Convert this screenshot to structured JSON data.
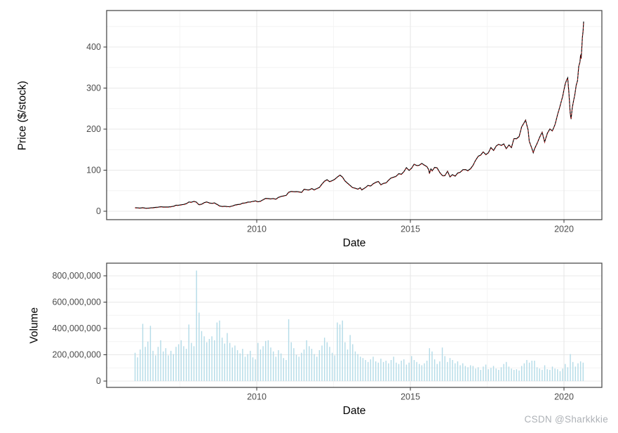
{
  "page": {
    "watermark": "CSDN @Sharkkkie",
    "background": "#ffffff"
  },
  "style": {
    "panel_border": "#4d4d4d",
    "grid_major": "#e8e8e8",
    "grid_minor": "#f4f4f4",
    "tick_mark": "#333333",
    "tick_text": "#4d4d4d",
    "price_line": "#000000",
    "fitted_line": "#cc2222",
    "volume_bar": "#add8e6"
  },
  "chart_data": [
    {
      "type": "line",
      "title": "",
      "xlabel": "Date",
      "ylabel": "Price ($/stock)",
      "legend": "none",
      "grid": "on",
      "xlim": [
        2005.2,
        2021.3
      ],
      "ylim": [
        -20,
        489
      ],
      "x_ticks": [
        {
          "value": 2010,
          "label": "2010"
        },
        {
          "value": 2015,
          "label": "2015"
        },
        {
          "value": 2020,
          "label": "2020"
        }
      ],
      "x_minor": [
        2007.5,
        2012.5,
        2017.5
      ],
      "y_ticks": [
        {
          "value": 0,
          "label": "0"
        },
        {
          "value": 100,
          "label": "100"
        },
        {
          "value": 200,
          "label": "200"
        },
        {
          "value": 300,
          "label": "300"
        },
        {
          "value": 400,
          "label": "400"
        }
      ],
      "y_minor": [
        50,
        150,
        250,
        350,
        450
      ],
      "series": [
        {
          "name": "observed price",
          "color": "#000000",
          "style": "solid",
          "points": [
            [
              2006.04,
              8.6
            ],
            [
              2006.12,
              8.2
            ],
            [
              2006.21,
              7.9
            ],
            [
              2006.29,
              8.6
            ],
            [
              2006.37,
              7.6
            ],
            [
              2006.46,
              7.4
            ],
            [
              2006.54,
              8.2
            ],
            [
              2006.62,
              8.5
            ],
            [
              2006.71,
              9.4
            ],
            [
              2006.79,
              9.9
            ],
            [
              2006.87,
              11.0
            ],
            [
              2006.96,
              10.3
            ],
            [
              2007.04,
              10.5
            ],
            [
              2007.12,
              10.2
            ],
            [
              2007.21,
              11.2
            ],
            [
              2007.29,
              12.2
            ],
            [
              2007.37,
              14.5
            ],
            [
              2007.46,
              14.7
            ],
            [
              2007.54,
              15.8
            ],
            [
              2007.62,
              16.6
            ],
            [
              2007.71,
              18.4
            ],
            [
              2007.79,
              22.6
            ],
            [
              2007.87,
              21.8
            ],
            [
              2007.96,
              24.0
            ],
            [
              2008.04,
              22.0
            ],
            [
              2008.08,
              18.5
            ],
            [
              2008.12,
              16.0
            ],
            [
              2008.21,
              17.2
            ],
            [
              2008.29,
              20.9
            ],
            [
              2008.37,
              22.7
            ],
            [
              2008.46,
              20.1
            ],
            [
              2008.54,
              19.1
            ],
            [
              2008.62,
              20.3
            ],
            [
              2008.71,
              16.5
            ],
            [
              2008.79,
              13.0
            ],
            [
              2008.87,
              11.6
            ],
            [
              2008.96,
              12.2
            ],
            [
              2009.04,
              11.5
            ],
            [
              2009.12,
              11.2
            ],
            [
              2009.21,
              12.8
            ],
            [
              2009.29,
              15.1
            ],
            [
              2009.37,
              16.3
            ],
            [
              2009.46,
              17.0
            ],
            [
              2009.54,
              19.6
            ],
            [
              2009.62,
              20.2
            ],
            [
              2009.71,
              22.2
            ],
            [
              2009.79,
              22.6
            ],
            [
              2009.87,
              24.0
            ],
            [
              2009.96,
              25.3
            ],
            [
              2010.04,
              23.0
            ],
            [
              2010.12,
              24.5
            ],
            [
              2010.21,
              28.2
            ],
            [
              2010.29,
              31.3
            ],
            [
              2010.37,
              30.8
            ],
            [
              2010.46,
              30.2
            ],
            [
              2010.54,
              30.9
            ],
            [
              2010.62,
              29.2
            ],
            [
              2010.71,
              34.0
            ],
            [
              2010.79,
              36.1
            ],
            [
              2010.87,
              37.3
            ],
            [
              2010.96,
              38.7
            ],
            [
              2011.04,
              46.3
            ],
            [
              2011.12,
              48.2
            ],
            [
              2011.21,
              47.5
            ],
            [
              2011.29,
              47.7
            ],
            [
              2011.37,
              47.4
            ],
            [
              2011.46,
              45.8
            ],
            [
              2011.54,
              53.3
            ],
            [
              2011.62,
              52.5
            ],
            [
              2011.71,
              52.0
            ],
            [
              2011.79,
              55.2
            ],
            [
              2011.87,
              52.1
            ],
            [
              2011.96,
              55.3
            ],
            [
              2012.04,
              58.2
            ],
            [
              2012.12,
              66.0
            ],
            [
              2012.21,
              73.5
            ],
            [
              2012.29,
              76.7
            ],
            [
              2012.37,
              72.1
            ],
            [
              2012.46,
              74.6
            ],
            [
              2012.54,
              78.0
            ],
            [
              2012.62,
              83.3
            ],
            [
              2012.71,
              88.0
            ],
            [
              2012.79,
              83.2
            ],
            [
              2012.87,
              74.0
            ],
            [
              2012.96,
              68.0
            ],
            [
              2013.04,
              62.8
            ],
            [
              2013.12,
              57.5
            ],
            [
              2013.21,
              56.0
            ],
            [
              2013.29,
              53.9
            ],
            [
              2013.37,
              57.2
            ],
            [
              2013.42,
              51.8
            ],
            [
              2013.46,
              54.0
            ],
            [
              2013.54,
              57.8
            ],
            [
              2013.62,
              62.9
            ],
            [
              2013.71,
              61.5
            ],
            [
              2013.79,
              66.8
            ],
            [
              2013.87,
              70.2
            ],
            [
              2013.96,
              72.5
            ],
            [
              2014.04,
              64.5
            ],
            [
              2014.12,
              67.8
            ],
            [
              2014.21,
              69.0
            ],
            [
              2014.29,
              75.5
            ],
            [
              2014.37,
              81.1
            ],
            [
              2014.46,
              83.0
            ],
            [
              2014.54,
              85.5
            ],
            [
              2014.62,
              91.5
            ],
            [
              2014.71,
              90.1
            ],
            [
              2014.79,
              96.5
            ],
            [
              2014.87,
              106.2
            ],
            [
              2014.96,
              99.5
            ],
            [
              2015.04,
              105.0
            ],
            [
              2015.12,
              114.5
            ],
            [
              2015.21,
              111.2
            ],
            [
              2015.29,
              112.0
            ],
            [
              2015.37,
              116.5
            ],
            [
              2015.46,
              112.1
            ],
            [
              2015.54,
              108.5
            ],
            [
              2015.6,
              100.5
            ],
            [
              2015.62,
              92.0
            ],
            [
              2015.67,
              103.0
            ],
            [
              2015.71,
              98.5
            ],
            [
              2015.79,
              106.8
            ],
            [
              2015.87,
              105.7
            ],
            [
              2015.96,
              94.2
            ],
            [
              2016.04,
              87.0
            ],
            [
              2016.12,
              86.5
            ],
            [
              2016.21,
              97.5
            ],
            [
              2016.29,
              83.8
            ],
            [
              2016.37,
              89.3
            ],
            [
              2016.46,
              85.5
            ],
            [
              2016.54,
              93.2
            ],
            [
              2016.62,
              94.9
            ],
            [
              2016.71,
              101.2
            ],
            [
              2016.79,
              101.5
            ],
            [
              2016.87,
              98.8
            ],
            [
              2016.96,
              103.6
            ],
            [
              2017.04,
              112.0
            ],
            [
              2017.12,
              124.0
            ],
            [
              2017.21,
              134.0
            ],
            [
              2017.29,
              137.0
            ],
            [
              2017.37,
              144.5
            ],
            [
              2017.46,
              138.0
            ],
            [
              2017.54,
              142.5
            ],
            [
              2017.62,
              155.0
            ],
            [
              2017.71,
              148.0
            ],
            [
              2017.79,
              158.5
            ],
            [
              2017.87,
              163.0
            ],
            [
              2017.96,
              160.5
            ],
            [
              2018.04,
              164.0
            ],
            [
              2018.12,
              152.5
            ],
            [
              2018.21,
              161.5
            ],
            [
              2018.29,
              155.0
            ],
            [
              2018.37,
              176.5
            ],
            [
              2018.46,
              177.0
            ],
            [
              2018.54,
              182.0
            ],
            [
              2018.62,
              205.5
            ],
            [
              2018.71,
              216.5
            ],
            [
              2018.75,
              222.0
            ],
            [
              2018.79,
              210.0
            ],
            [
              2018.83,
              198.5
            ],
            [
              2018.87,
              170.5
            ],
            [
              2018.96,
              152.0
            ],
            [
              2019.0,
              142.5
            ],
            [
              2019.04,
              152.0
            ],
            [
              2019.12,
              164.5
            ],
            [
              2019.21,
              180.5
            ],
            [
              2019.29,
              192.5
            ],
            [
              2019.37,
              168.5
            ],
            [
              2019.46,
              190.0
            ],
            [
              2019.54,
              200.5
            ],
            [
              2019.62,
              195.5
            ],
            [
              2019.71,
              211.5
            ],
            [
              2019.79,
              235.0
            ],
            [
              2019.87,
              255.5
            ],
            [
              2019.96,
              280.5
            ],
            [
              2020.0,
              296.0
            ],
            [
              2020.04,
              310.0
            ],
            [
              2020.08,
              318.5
            ],
            [
              2020.12,
              325.0
            ],
            [
              2020.16,
              289.0
            ],
            [
              2020.2,
              240.5
            ],
            [
              2020.23,
              224.5
            ],
            [
              2020.27,
              252.0
            ],
            [
              2020.31,
              268.5
            ],
            [
              2020.35,
              282.5
            ],
            [
              2020.4,
              307.5
            ],
            [
              2020.44,
              318.0
            ],
            [
              2020.48,
              352.5
            ],
            [
              2020.52,
              364.0
            ],
            [
              2020.54,
              381.5
            ],
            [
              2020.56,
              372.0
            ],
            [
              2020.58,
              398.0
            ],
            [
              2020.6,
              425.0
            ],
            [
              2020.62,
              438.0
            ],
            [
              2020.64,
              462.0
            ]
          ]
        },
        {
          "name": "fitted / one-step-ahead prediction (overlaps observed)",
          "color": "#cc2222",
          "style": "dashed",
          "same_points_as": 0
        }
      ]
    },
    {
      "type": "bar",
      "title": "",
      "xlabel": "Date",
      "ylabel": "Volume",
      "legend": "none",
      "grid": "on",
      "xlim": [
        2005.2,
        2021.3
      ],
      "ylim_millions": [
        -45,
        896
      ],
      "x_ticks": [
        {
          "value": 2010,
          "label": "2010"
        },
        {
          "value": 2015,
          "label": "2015"
        },
        {
          "value": 2020,
          "label": "2020"
        }
      ],
      "x_minor": [
        2007.5,
        2012.5,
        2017.5
      ],
      "y_ticks": [
        {
          "value": 0,
          "label": "0"
        },
        {
          "value": 200,
          "label": "200,000,000"
        },
        {
          "value": 400,
          "label": "400,000,000"
        },
        {
          "value": 600,
          "label": "600,000,000"
        },
        {
          "value": 800,
          "label": "800,000,000"
        }
      ],
      "y_minor": [
        100,
        300,
        500,
        700
      ],
      "unit": "shares (values in millions)",
      "x_start": 2006.04,
      "x_step": 0.08333,
      "values_millions": [
        215,
        180,
        240,
        435,
        260,
        300,
        420,
        230,
        195,
        260,
        310,
        225,
        250,
        195,
        230,
        205,
        260,
        280,
        310,
        265,
        245,
        430,
        290,
        265,
        840,
        520,
        380,
        340,
        295,
        320,
        340,
        310,
        445,
        460,
        330,
        285,
        365,
        290,
        255,
        270,
        235,
        210,
        245,
        185,
        205,
        230,
        180,
        165,
        290,
        240,
        265,
        305,
        310,
        255,
        225,
        185,
        235,
        210,
        175,
        160,
        470,
        295,
        250,
        200,
        185,
        215,
        240,
        310,
        265,
        245,
        205,
        185,
        235,
        270,
        330,
        295,
        260,
        215,
        195,
        445,
        430,
        460,
        295,
        240,
        350,
        280,
        225,
        205,
        185,
        175,
        160,
        145,
        165,
        185,
        150,
        140,
        170,
        145,
        155,
        135,
        160,
        185,
        140,
        130,
        155,
        165,
        125,
        140,
        190,
        160,
        145,
        130,
        120,
        135,
        155,
        250,
        225,
        165,
        130,
        150,
        255,
        190,
        145,
        175,
        160,
        135,
        150,
        120,
        135,
        115,
        105,
        120,
        115,
        95,
        105,
        85,
        110,
        125,
        90,
        100,
        115,
        95,
        85,
        105,
        130,
        145,
        110,
        95,
        85,
        90,
        80,
        115,
        135,
        160,
        140,
        155,
        155,
        105,
        95,
        85,
        120,
        90,
        85,
        110,
        95,
        90,
        75,
        95,
        130,
        105,
        205,
        145,
        110,
        135,
        150,
        140
      ]
    }
  ]
}
